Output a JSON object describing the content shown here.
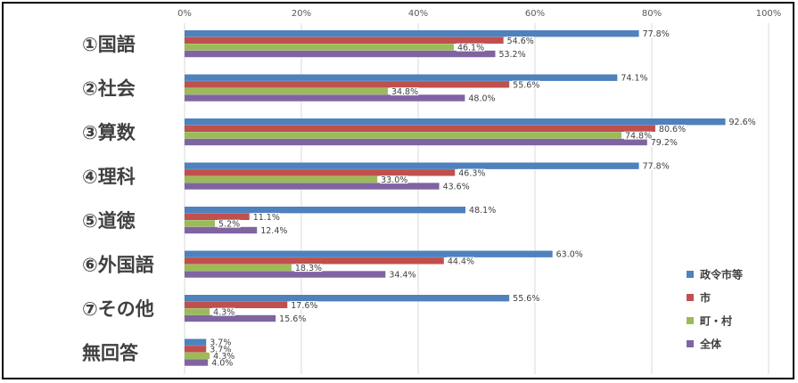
{
  "chart_data": {
    "type": "bar",
    "orientation": "horizontal",
    "categories": [
      "①国語",
      "②社会",
      "③算数",
      "④理科",
      "⑤道徳",
      "⑥外国語",
      "⑦その他",
      "無回答"
    ],
    "series": [
      {
        "name": "政令市等",
        "color": "#4F81BD",
        "values": [
          77.8,
          74.1,
          92.6,
          77.8,
          48.1,
          63.0,
          55.6,
          3.7
        ]
      },
      {
        "name": "市",
        "color": "#C0504D",
        "values": [
          54.6,
          55.6,
          80.6,
          46.3,
          11.1,
          44.4,
          17.6,
          3.7
        ]
      },
      {
        "name": "町・村",
        "color": "#9BBB59",
        "values": [
          46.1,
          34.8,
          74.8,
          33.0,
          5.2,
          18.3,
          4.3,
          4.3
        ]
      },
      {
        "name": "全体",
        "color": "#8064A2",
        "values": [
          53.2,
          48.0,
          79.2,
          43.6,
          12.4,
          34.4,
          15.6,
          4.0
        ]
      }
    ],
    "xlim": [
      0,
      100
    ],
    "xticks": [
      "0%",
      "20%",
      "40%",
      "60%",
      "80%",
      "100%"
    ],
    "x_axis_position": "top",
    "grid": true,
    "legend": "right",
    "value_suffix": "%"
  }
}
